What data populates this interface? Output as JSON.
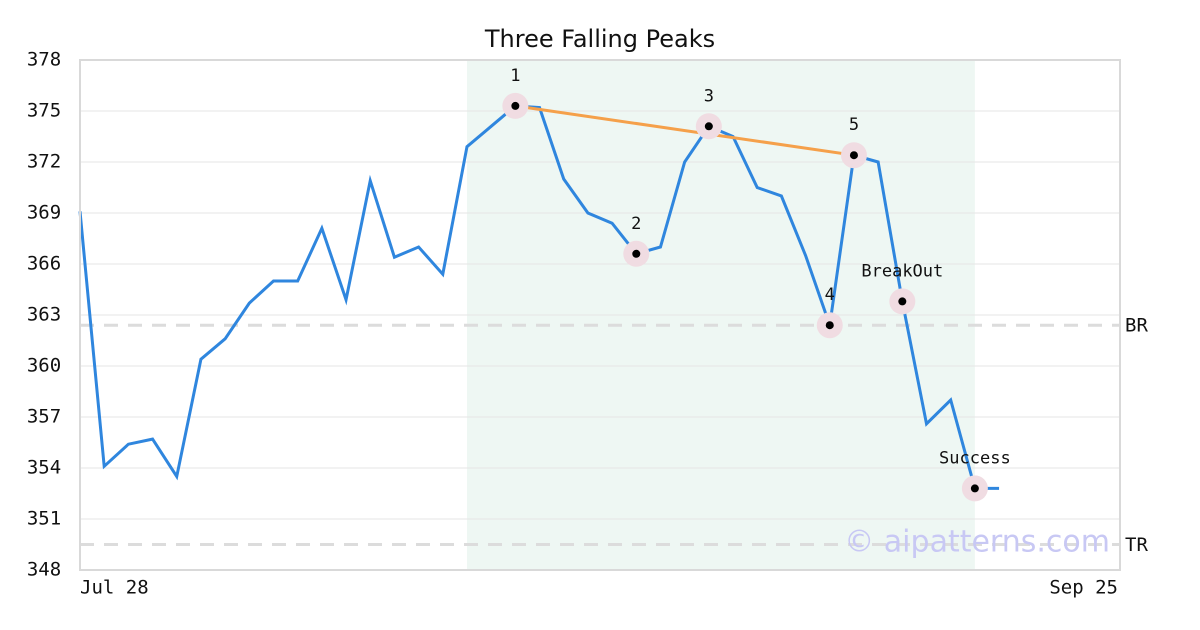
{
  "chart_data": {
    "type": "line",
    "title": "Three Falling Peaks",
    "categories": [
      "Jul 28",
      null,
      null,
      null,
      null,
      null,
      null,
      null,
      null,
      null,
      null,
      null,
      null,
      null,
      null,
      null,
      null,
      null,
      null,
      null,
      null,
      null,
      null,
      null,
      null,
      null,
      null,
      null,
      null,
      null,
      null,
      null,
      null,
      null,
      null,
      null,
      null,
      null,
      null,
      null,
      null,
      null,
      null,
      "Sep 25"
    ],
    "series": [
      {
        "color": "#2f86de",
        "values": [
          369.1,
          354.1,
          355.4,
          355.7,
          353.5,
          360.4,
          361.6,
          363.7,
          365.0,
          365.0,
          368.1,
          363.9,
          370.9,
          366.4,
          367.0,
          365.4,
          372.9,
          374.1,
          375.3,
          375.2,
          371.0,
          369.0,
          368.4,
          366.6,
          367.0,
          372.0,
          374.1,
          373.5,
          370.5,
          370.0,
          366.5,
          362.4,
          372.4,
          372.0,
          363.8,
          356.6,
          358.0,
          352.8,
          352.8,
          null,
          null,
          null,
          null,
          null
        ]
      }
    ],
    "ylim": [
      348,
      378
    ],
    "yticks": [
      348,
      351,
      354,
      357,
      360,
      363,
      366,
      369,
      372,
      375,
      378
    ],
    "grid": true,
    "shade": {
      "from": 16,
      "to": 37,
      "color": "#eef7f3"
    },
    "trendline": {
      "from": 18,
      "to": 32,
      "color": "#f5a04a"
    },
    "annotations": [
      {
        "label": "1",
        "point": 18
      },
      {
        "label": "2",
        "point": 23
      },
      {
        "label": "3",
        "point": 26
      },
      {
        "label": "4",
        "point": 31
      },
      {
        "label": "5",
        "point": 32
      },
      {
        "label": "BreakOut",
        "point": 34
      },
      {
        "label": "Success",
        "point": 37
      }
    ],
    "levels": [
      {
        "label": "BR",
        "value": 362.4
      },
      {
        "label": "TR",
        "value": 349.5
      }
    ],
    "watermark": "© aipatterns.com"
  }
}
